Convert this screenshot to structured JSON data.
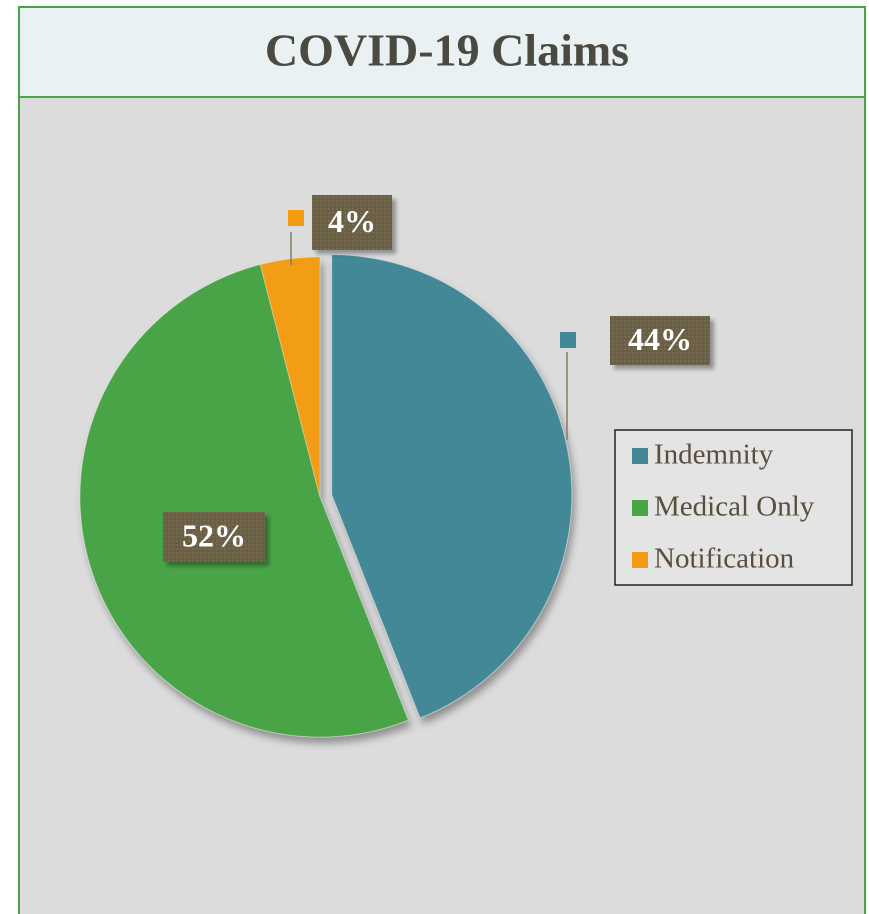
{
  "chart_data": {
    "type": "pie",
    "title": "COVID-19 Claims",
    "categories": [
      "Indemnity",
      "Medical Only",
      "Notification"
    ],
    "values": [
      44,
      52,
      4
    ],
    "value_labels": [
      "44%",
      "52%",
      "4%"
    ],
    "colors": [
      "#438896",
      "#4aa446",
      "#f39c12"
    ],
    "legend": "right"
  }
}
